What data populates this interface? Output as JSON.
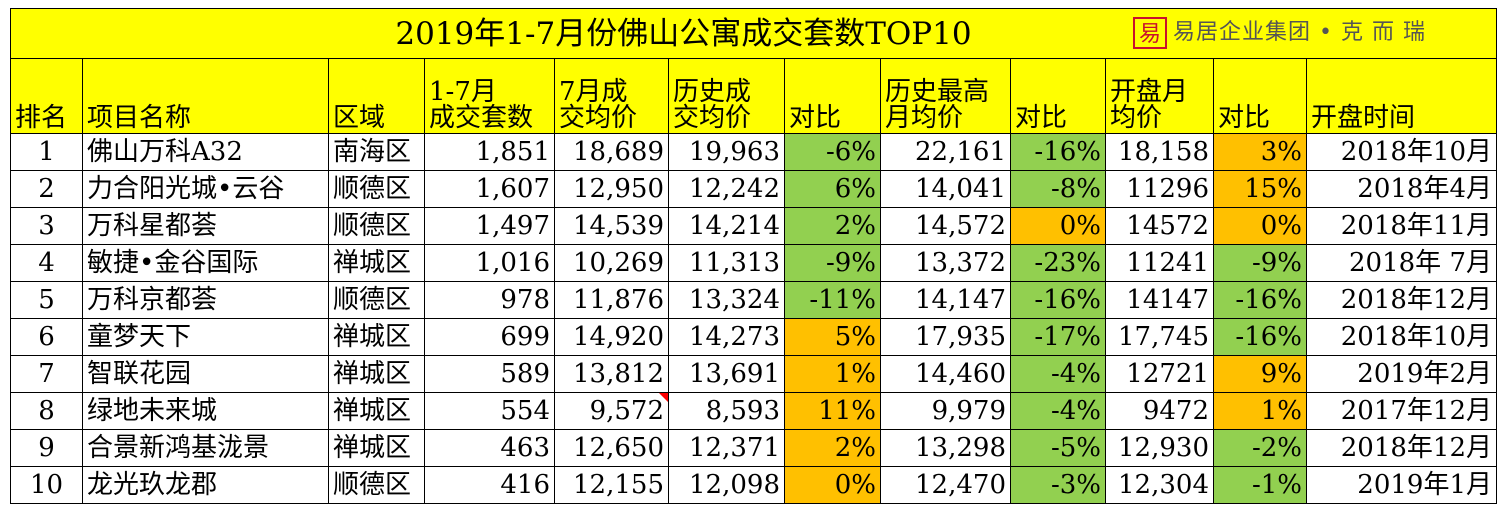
{
  "title": "2019年1-7月份佛山公寓成交套数TOP10",
  "logo": {
    "mark": "易",
    "text": "易居企业集团 • 克 而 瑞"
  },
  "headers": {
    "rank": [
      "排名"
    ],
    "name": [
      "项目名称"
    ],
    "district": [
      "区域"
    ],
    "units": [
      "1-7月",
      "成交套数"
    ],
    "july_price": [
      "7月成",
      "交均价"
    ],
    "hist_price": [
      "历史成",
      "交均价"
    ],
    "cmp1": [
      "对比"
    ],
    "hist_max": [
      "历史最高",
      "月均价"
    ],
    "cmp2": [
      "对比"
    ],
    "open_price": [
      "开盘月",
      "均价"
    ],
    "cmp3": [
      "对比"
    ],
    "open_time": [
      "开盘时间"
    ]
  },
  "colors": {
    "header_bg": "#ffff00",
    "green": "#92d050",
    "orange": "#ffc000",
    "comment": "#ff0000"
  },
  "rows": [
    {
      "rank": "1",
      "name": "佛山万科A32",
      "district": "南海区",
      "units": "1,851",
      "july_price": "18,689",
      "hist_price": "19,963",
      "cmp1": "-6%",
      "cmp1_color": "green",
      "hist_max": "22,161",
      "cmp2": "-16%",
      "cmp2_color": "green",
      "open_price": "18,158",
      "cmp3": "3%",
      "cmp3_color": "orange",
      "open_time": "2018年10月"
    },
    {
      "rank": "2",
      "name": "力合阳光城•云谷",
      "district": "顺德区",
      "units": "1,607",
      "july_price": "12,950",
      "hist_price": "12,242",
      "cmp1": "6%",
      "cmp1_color": "green",
      "hist_max": "14,041",
      "cmp2": "-8%",
      "cmp2_color": "green",
      "open_price": "11296",
      "cmp3": "15%",
      "cmp3_color": "orange",
      "open_time": "2018年4月"
    },
    {
      "rank": "3",
      "name": "万科星都荟",
      "district": "顺德区",
      "units": "1,497",
      "july_price": "14,539",
      "hist_price": "14,214",
      "cmp1": "2%",
      "cmp1_color": "green",
      "hist_max": "14,572",
      "cmp2": "0%",
      "cmp2_color": "orange",
      "open_price": "14572",
      "cmp3": "0%",
      "cmp3_color": "orange",
      "open_time": "2018年11月"
    },
    {
      "rank": "4",
      "name": "敏捷•金谷国际",
      "district": "禅城区",
      "units": "1,016",
      "july_price": "10,269",
      "hist_price": "11,313",
      "cmp1": "-9%",
      "cmp1_color": "green",
      "hist_max": "13,372",
      "cmp2": "-23%",
      "cmp2_color": "green",
      "open_price": "11241",
      "cmp3": "-9%",
      "cmp3_color": "green",
      "open_time": "2018年 7月"
    },
    {
      "rank": "5",
      "name": "万科京都荟",
      "district": "顺德区",
      "units": "978",
      "july_price": "11,876",
      "hist_price": "13,324",
      "cmp1": "-11%",
      "cmp1_color": "green",
      "hist_max": "14,147",
      "cmp2": "-16%",
      "cmp2_color": "green",
      "open_price": "14147",
      "cmp3": "-16%",
      "cmp3_color": "green",
      "open_time": "2018年12月"
    },
    {
      "rank": "6",
      "name": "童梦天下",
      "district": "禅城区",
      "units": "699",
      "july_price": "14,920",
      "hist_price": "14,273",
      "cmp1": "5%",
      "cmp1_color": "orange",
      "hist_max": "17,935",
      "cmp2": "-17%",
      "cmp2_color": "green",
      "open_price": "17,745",
      "cmp3": "-16%",
      "cmp3_color": "green",
      "open_time": "2018年10月"
    },
    {
      "rank": "7",
      "name": "智联花园",
      "district": "禅城区",
      "units": "589",
      "july_price": "13,812",
      "hist_price": "13,691",
      "cmp1": "1%",
      "cmp1_color": "orange",
      "hist_max": "14,460",
      "cmp2": "-4%",
      "cmp2_color": "green",
      "open_price": "12721",
      "cmp3": "9%",
      "cmp3_color": "orange",
      "open_time": "2019年2月"
    },
    {
      "rank": "8",
      "name": "绿地未来城",
      "district": "禅城区",
      "units": "554",
      "july_price": "9,572",
      "hist_price": "8,593",
      "cmp1": "11%",
      "cmp1_color": "orange",
      "hist_max": "9,979",
      "cmp2": "-4%",
      "cmp2_color": "green",
      "open_price": "9472",
      "cmp3": "1%",
      "cmp3_color": "orange",
      "open_time": "2017年12月",
      "july_price_comment": true
    },
    {
      "rank": "9",
      "name": "合景新鸿基泷景",
      "district": "禅城区",
      "units": "463",
      "july_price": "12,650",
      "hist_price": "12,371",
      "cmp1": "2%",
      "cmp1_color": "orange",
      "hist_max": "13,298",
      "cmp2": "-5%",
      "cmp2_color": "green",
      "open_price": "12,930",
      "cmp3": "-2%",
      "cmp3_color": "green",
      "open_time": "2018年12月"
    },
    {
      "rank": "10",
      "name": "龙光玖龙郡",
      "district": "顺德区",
      "units": "416",
      "july_price": "12,155",
      "hist_price": "12,098",
      "cmp1": "0%",
      "cmp1_color": "orange",
      "hist_max": "12,470",
      "cmp2": "-3%",
      "cmp2_color": "green",
      "open_price": "12,304",
      "cmp3": "-1%",
      "cmp3_color": "green",
      "open_time": "2019年1月"
    }
  ]
}
